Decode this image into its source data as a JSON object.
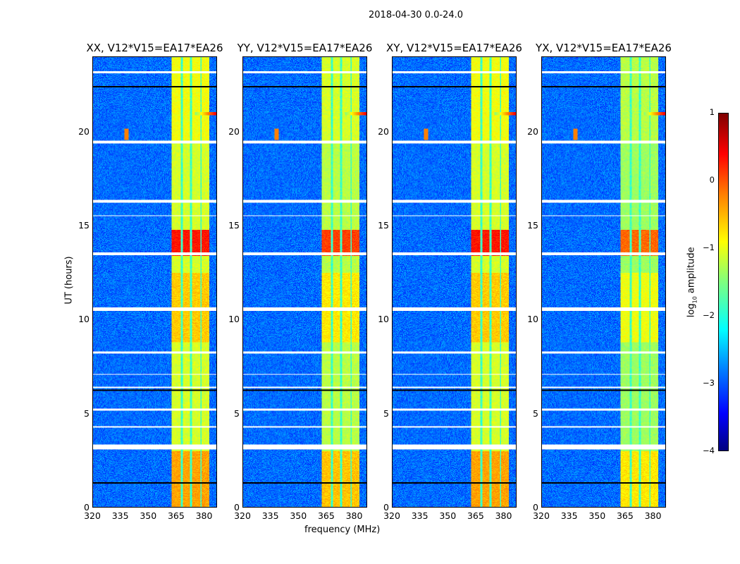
{
  "suptitle": "2018-04-30 0.0-24.0",
  "chart_data": {
    "type": "heatmap",
    "xlabel": "frequency (MHz)",
    "ylabel": "UT (hours)",
    "xlim": [
      320,
      387
    ],
    "ylim": [
      0,
      24
    ],
    "xticks": [
      "320",
      "335",
      "350",
      "365",
      "380"
    ],
    "xtick_values": [
      320,
      335,
      350,
      365,
      380
    ],
    "yticks": [
      "0",
      "5",
      "10",
      "15",
      "20"
    ],
    "ytick_values": [
      0,
      5,
      10,
      15,
      20
    ],
    "panels": [
      {
        "title": "XX, V12*V15=EA17*EA26",
        "band_level": 1.0
      },
      {
        "title": "YY, V12*V15=EA17*EA26",
        "band_level": 0.95
      },
      {
        "title": "XY, V12*V15=EA17*EA26",
        "band_level": 1.0
      },
      {
        "title": "YX, V12*V15=EA17*EA26",
        "band_level": 0.9
      }
    ],
    "bright_band_MHz": [
      362.5,
      383
    ],
    "band_gaps_MHz": [
      368,
      373,
      378.5
    ],
    "flagged_times_hours": [
      [
        23.15,
        23.25
      ],
      [
        19.4,
        19.55
      ],
      [
        16.25,
        16.4
      ],
      [
        15.55,
        15.6
      ],
      [
        13.45,
        13.6
      ],
      [
        10.5,
        10.65
      ],
      [
        8.2,
        8.3
      ],
      [
        7.05,
        7.12
      ],
      [
        6.35,
        6.45
      ],
      [
        5.15,
        5.25
      ],
      [
        4.25,
        4.35
      ],
      [
        3.1,
        3.35
      ]
    ],
    "dark_lines_hours": [
      22.45,
      6.25,
      1.3
    ],
    "colorbar": {
      "label": "log10 amplitude",
      "label_main": "log",
      "label_sub": "10",
      "label_rest": " amplitude",
      "range": [
        -4,
        1
      ],
      "ticks": [
        "1",
        "0",
        "−1",
        "−2",
        "−3",
        "−4"
      ],
      "tick_values": [
        1,
        0,
        -1,
        -2,
        -3,
        -4
      ],
      "colormap": "jet"
    }
  }
}
